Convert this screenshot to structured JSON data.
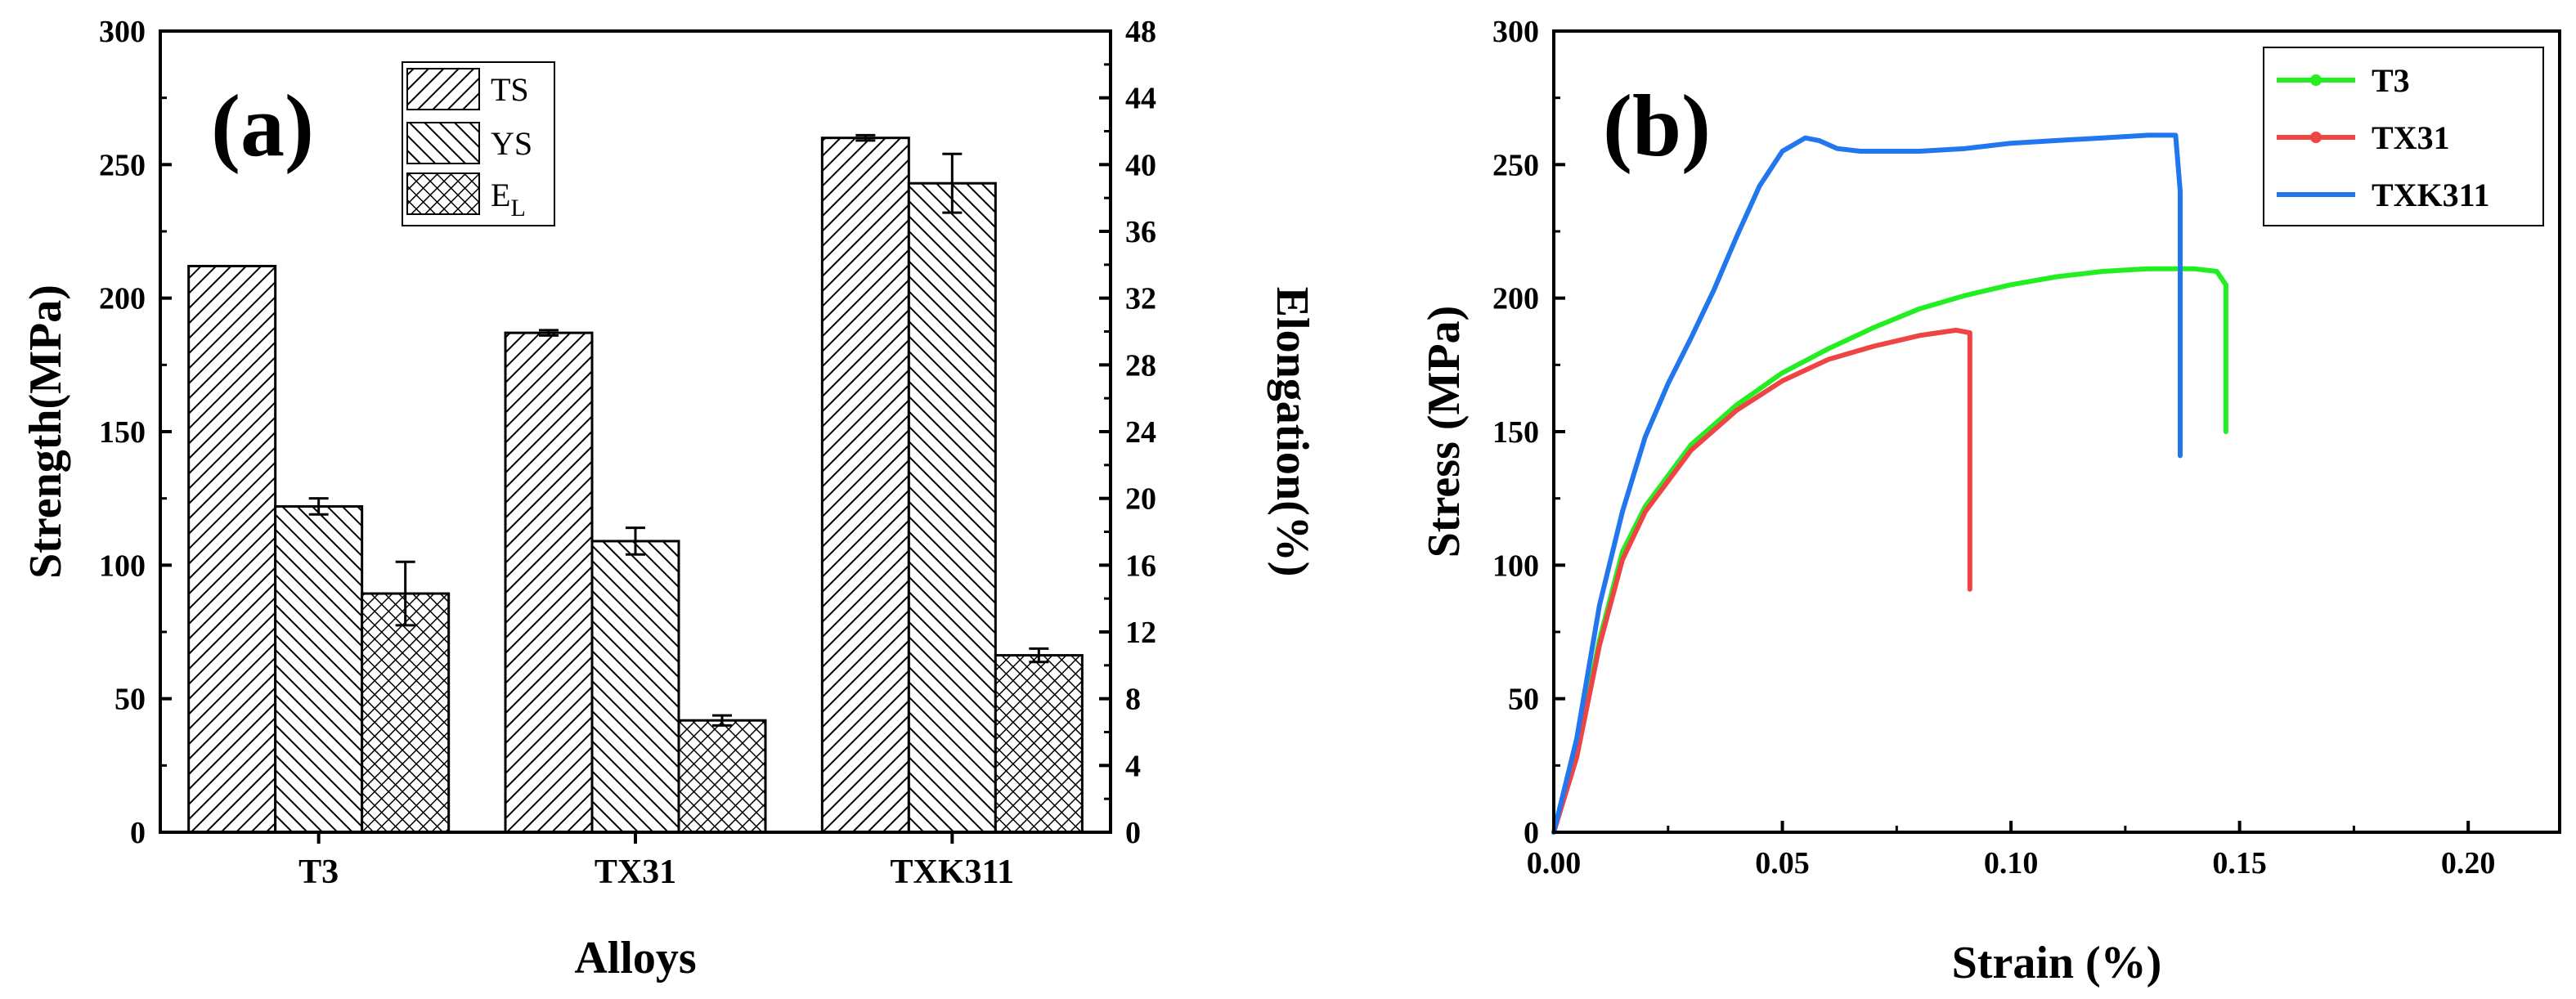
{
  "chart_data": [
    {
      "type": "bar",
      "panel_label": "(a)",
      "categories": [
        "T3",
        "TX31",
        "TXK311"
      ],
      "xlabel": "Alloys",
      "ylabel": "Strength(MPa)",
      "y2label": "Elongation(%)",
      "ylim": [
        0,
        300
      ],
      "y_ticks": [
        0,
        50,
        100,
        150,
        200,
        250,
        300
      ],
      "y2lim": [
        0,
        48
      ],
      "y2_ticks": [
        0,
        4,
        8,
        12,
        16,
        20,
        24,
        28,
        32,
        36,
        40,
        44,
        48
      ],
      "legend_position": "top-center",
      "series": [
        {
          "name": "TS",
          "legend_label": "TS",
          "axis": "left",
          "pattern": "diag-right",
          "values": [
            212,
            187,
            260
          ],
          "errors": [
            0,
            1,
            1
          ]
        },
        {
          "name": "YS",
          "legend_label": "YS",
          "axis": "left",
          "pattern": "diag-left",
          "values": [
            122,
            109,
            243
          ],
          "errors": [
            3,
            5,
            11
          ]
        },
        {
          "name": "EL",
          "legend_label": "E",
          "legend_sub": "L",
          "axis": "right",
          "pattern": "crosshatch",
          "values": [
            14.3,
            6.7,
            10.6
          ],
          "errors": [
            1.9,
            0.3,
            0.4
          ]
        }
      ]
    },
    {
      "type": "line",
      "panel_label": "(b)",
      "xlabel": "Strain (%)",
      "ylabel": "Stress (MPa)",
      "xlim": [
        0,
        0.22
      ],
      "x_ticks": [
        "0.00",
        "0.05",
        "0.10",
        "0.15",
        "0.20"
      ],
      "ylim": [
        0,
        300
      ],
      "y_ticks": [
        0,
        50,
        100,
        150,
        200,
        250,
        300
      ],
      "legend_position": "top-right",
      "series": [
        {
          "name": "T3",
          "color": "#22ee22",
          "x": [
            0,
            0.005,
            0.01,
            0.015,
            0.02,
            0.03,
            0.04,
            0.05,
            0.06,
            0.07,
            0.08,
            0.09,
            0.1,
            0.11,
            0.12,
            0.13,
            0.14,
            0.145,
            0.147,
            0.147,
            0.147
          ],
          "y": [
            0,
            30,
            72,
            105,
            122,
            145,
            160,
            172,
            181,
            189,
            196,
            201,
            205,
            208,
            210,
            211,
            211,
            210,
            205,
            190,
            150
          ]
        },
        {
          "name": "TX31",
          "color": "#ee4444",
          "x": [
            0,
            0.005,
            0.01,
            0.015,
            0.02,
            0.03,
            0.04,
            0.05,
            0.06,
            0.07,
            0.08,
            0.088,
            0.091,
            0.091,
            0.091
          ],
          "y": [
            0,
            28,
            70,
            102,
            120,
            143,
            158,
            169,
            177,
            182,
            186,
            188,
            187,
            150,
            91
          ]
        },
        {
          "name": "TXK311",
          "color": "#2277ee",
          "x": [
            0,
            0.005,
            0.01,
            0.015,
            0.02,
            0.025,
            0.03,
            0.035,
            0.04,
            0.045,
            0.05,
            0.055,
            0.058,
            0.062,
            0.067,
            0.07,
            0.08,
            0.09,
            0.1,
            0.11,
            0.12,
            0.13,
            0.136,
            0.137,
            0.137,
            0.137
          ],
          "y": [
            0,
            35,
            85,
            120,
            148,
            168,
            185,
            203,
            223,
            242,
            255,
            260,
            259,
            256,
            255,
            255,
            255,
            256,
            258,
            259,
            260,
            261,
            261,
            240,
            190,
            141
          ]
        }
      ]
    }
  ]
}
